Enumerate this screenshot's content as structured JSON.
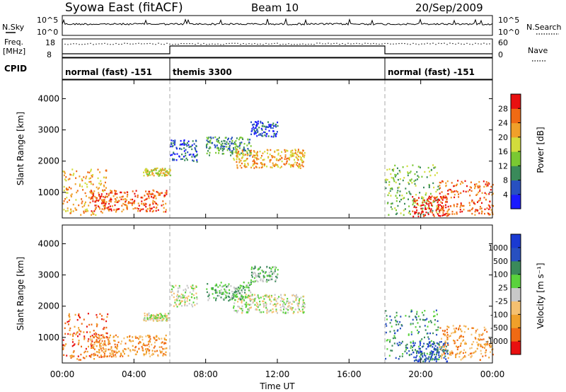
{
  "header": {
    "title": "Syowa East (fitACF)",
    "beam": "Beam 10",
    "date": "20/Sep/2009"
  },
  "noise_panel": {
    "left_label": "N.Sky",
    "right_label": "N.Search",
    "top_tick": "10^5",
    "bottom_tick": "10^0"
  },
  "freq_panel": {
    "left_label_line1": "Freq.",
    "left_label_line2": "[MHz]",
    "left_ticks": [
      "18",
      "8"
    ],
    "right_ticks": [
      "60",
      "0"
    ],
    "right_label": "Nave"
  },
  "cpid_panel": {
    "label": "CPID",
    "segments": [
      {
        "name": "normal (fast) -151",
        "start": 0,
        "end": 6
      },
      {
        "name": "themis 3300",
        "start": 6,
        "end": 18
      },
      {
        "name": "normal (fast) -151",
        "start": 18,
        "end": 24
      }
    ]
  },
  "power_colorbar": {
    "label": "Power [dB]",
    "ticks": [
      "4",
      "8",
      "12",
      "16",
      "20",
      "24",
      "28"
    ],
    "colors": [
      "#1a1aff",
      "#2850c0",
      "#3a8a5a",
      "#7ac832",
      "#d2dc3c",
      "#f0a02a",
      "#f06a14",
      "#e81010"
    ]
  },
  "velocity_colorbar": {
    "label": "Velocity [m s⁻¹]",
    "ticks": [
      "-1000",
      "-500",
      "-100",
      "-25",
      "25",
      "100",
      "500",
      "1000"
    ],
    "colors": [
      "#e81010",
      "#f06a14",
      "#f0a02a",
      "#f5c070",
      "#c8c8c8",
      "#5ad23c",
      "#3a8a5a",
      "#2850c0",
      "#1a3ad2"
    ]
  },
  "chart_data": {
    "type": "heatmap",
    "x_ticks": [
      "00:00",
      "04:00",
      "08:00",
      "12:00",
      "16:00",
      "20:00",
      "00:00"
    ],
    "xlabel": "Time UT",
    "ylabel": "Slant Range [km]",
    "y_ticks": [
      1000,
      2000,
      3000,
      4000
    ],
    "xlim": [
      0,
      24
    ],
    "ylim": [
      180,
      4600
    ],
    "mode_boundaries": [
      6,
      18
    ],
    "panels": [
      "power",
      "velocity"
    ],
    "echo_regions": [
      {
        "t0": 0.0,
        "t1": 2.5,
        "r0": 300,
        "r1": 1800,
        "power_level": 5,
        "velocity_level": 1
      },
      {
        "t0": 1.5,
        "t1": 5.8,
        "r0": 400,
        "r1": 1100,
        "power_level": 6,
        "velocity_level": 2
      },
      {
        "t0": 4.5,
        "t1": 6.0,
        "r0": 1550,
        "r1": 1800,
        "power_level": 4,
        "velocity_level": 4
      },
      {
        "t0": 6.0,
        "t1": 7.5,
        "r0": 2000,
        "r1": 2700,
        "power_level": 1,
        "velocity_level": 4
      },
      {
        "t0": 8.0,
        "t1": 10.5,
        "r0": 2200,
        "r1": 2800,
        "power_level": 2,
        "velocity_level": 5
      },
      {
        "t0": 9.5,
        "t1": 13.5,
        "r0": 1800,
        "r1": 2400,
        "power_level": 5,
        "velocity_level": 4
      },
      {
        "t0": 10.5,
        "t1": 12.0,
        "r0": 2800,
        "r1": 3300,
        "power_level": 1,
        "velocity_level": 5
      },
      {
        "t0": 18.0,
        "t1": 21.0,
        "r0": 300,
        "r1": 1900,
        "power_level": 3,
        "velocity_level": 6
      },
      {
        "t0": 19.5,
        "t1": 21.5,
        "r0": 250,
        "r1": 900,
        "power_level": 7,
        "velocity_level": 7
      },
      {
        "t0": 21.0,
        "t1": 24.0,
        "r0": 300,
        "r1": 1400,
        "power_level": 6,
        "velocity_level": 2
      }
    ]
  }
}
